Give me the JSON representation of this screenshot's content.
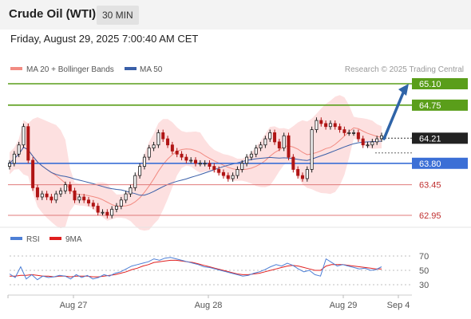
{
  "header": {
    "title": "Crude Oil (WTI)",
    "timeframe": "30 MIN"
  },
  "datetime": "Friday, August 29, 2025 7:00:40 AM CET",
  "colors": {
    "ma20": "#f28b82",
    "ma50": "#3a5fa8",
    "band_fill": "#fde0e0",
    "resistance": "#5a9e1a",
    "pivot": "#3b6fd6",
    "support": "#e07a7a",
    "candle_up": "#1a1a1a",
    "candle_down": "#b01515",
    "arrow": "#2f64a8",
    "rsi_line": "#4d7fd6",
    "rsi_ma": "#e01f1f",
    "last_price_tag": "#222222"
  },
  "chart_data": [
    {
      "type": "candlestick",
      "title": "",
      "legend": [
        {
          "name": "MA 20 + Bollinger Bands",
          "color": "#f28b82"
        },
        {
          "name": "MA 50",
          "color": "#3a5fa8"
        }
      ],
      "legend_position": "top-left",
      "source": "Research © 2025 Trading Central",
      "x_ticks": [
        "Aug 27",
        "Aug 28",
        "Aug 29",
        "Sep 4"
      ],
      "y_range": [
        62.8,
        65.25
      ],
      "levels": [
        {
          "value": 65.1,
          "label": "65.10",
          "kind": "resistance"
        },
        {
          "value": 64.75,
          "label": "64.75",
          "kind": "resistance"
        },
        {
          "value": 63.8,
          "label": "63.80",
          "kind": "pivot"
        },
        {
          "value": 63.45,
          "label": "63.45",
          "kind": "support"
        },
        {
          "value": 62.95,
          "label": "62.95",
          "kind": "support"
        }
      ],
      "last_price": {
        "value": 64.21,
        "label": "64.21"
      },
      "projection": {
        "from": 64.2,
        "to": 65.1
      },
      "close": [
        63.8,
        63.95,
        64.1,
        64.4,
        63.85,
        63.4,
        63.25,
        63.3,
        63.25,
        63.2,
        63.3,
        63.35,
        63.45,
        63.35,
        63.2,
        63.25,
        63.2,
        63.15,
        63.1,
        63.0,
        63.0,
        62.95,
        63.05,
        63.1,
        63.2,
        63.3,
        63.4,
        63.6,
        63.75,
        63.9,
        64.05,
        64.1,
        64.3,
        64.2,
        64.1,
        64.0,
        63.95,
        63.9,
        63.85,
        63.85,
        63.8,
        63.8,
        63.8,
        63.75,
        63.7,
        63.65,
        63.6,
        63.55,
        63.6,
        63.7,
        63.8,
        63.9,
        63.95,
        64.05,
        64.1,
        64.2,
        64.3,
        64.15,
        64.05,
        64.25,
        63.9,
        63.7,
        63.6,
        63.55,
        63.7,
        64.35,
        64.5,
        64.45,
        64.4,
        64.45,
        64.4,
        64.35,
        64.3,
        64.3,
        64.3,
        64.2,
        64.1,
        64.1,
        64.15,
        64.2,
        64.25
      ],
      "rsi": {
        "legend": [
          {
            "name": "RSI",
            "color": "#4d7fd6"
          },
          {
            "name": "9MA",
            "color": "#e01f1f"
          }
        ],
        "y_ticks": [
          70,
          50,
          30
        ],
        "y_range": [
          20,
          80
        ],
        "rsi_values": [
          45,
          40,
          55,
          38,
          44,
          37,
          42,
          40,
          41,
          43,
          42,
          38,
          44,
          40,
          43,
          38,
          40,
          44,
          42,
          46,
          48,
          52,
          56,
          58,
          60,
          62,
          66,
          64,
          67,
          68,
          66,
          64,
          62,
          60,
          58,
          55,
          54,
          52,
          50,
          48,
          46,
          44,
          42,
          43,
          46,
          48,
          51,
          55,
          58,
          56,
          60,
          57,
          52,
          48,
          50,
          44,
          42,
          66,
          61,
          56,
          58,
          56,
          54,
          52,
          53,
          50,
          51,
          55
        ],
        "ma_values": [
          42,
          42,
          43,
          43,
          44,
          43,
          42,
          42,
          41,
          42,
          42,
          41,
          42,
          42,
          42,
          41,
          41,
          42,
          43,
          44,
          46,
          48,
          51,
          53,
          56,
          58,
          61,
          62,
          63,
          64,
          64,
          63,
          62,
          61,
          59,
          57,
          55,
          53,
          51,
          49,
          47,
          45,
          44,
          44,
          45,
          46,
          48,
          50,
          52,
          54,
          56,
          57,
          56,
          54,
          52,
          50,
          50,
          56,
          58,
          58,
          58,
          57,
          56,
          55,
          54,
          53,
          52,
          52
        ]
      }
    }
  ]
}
